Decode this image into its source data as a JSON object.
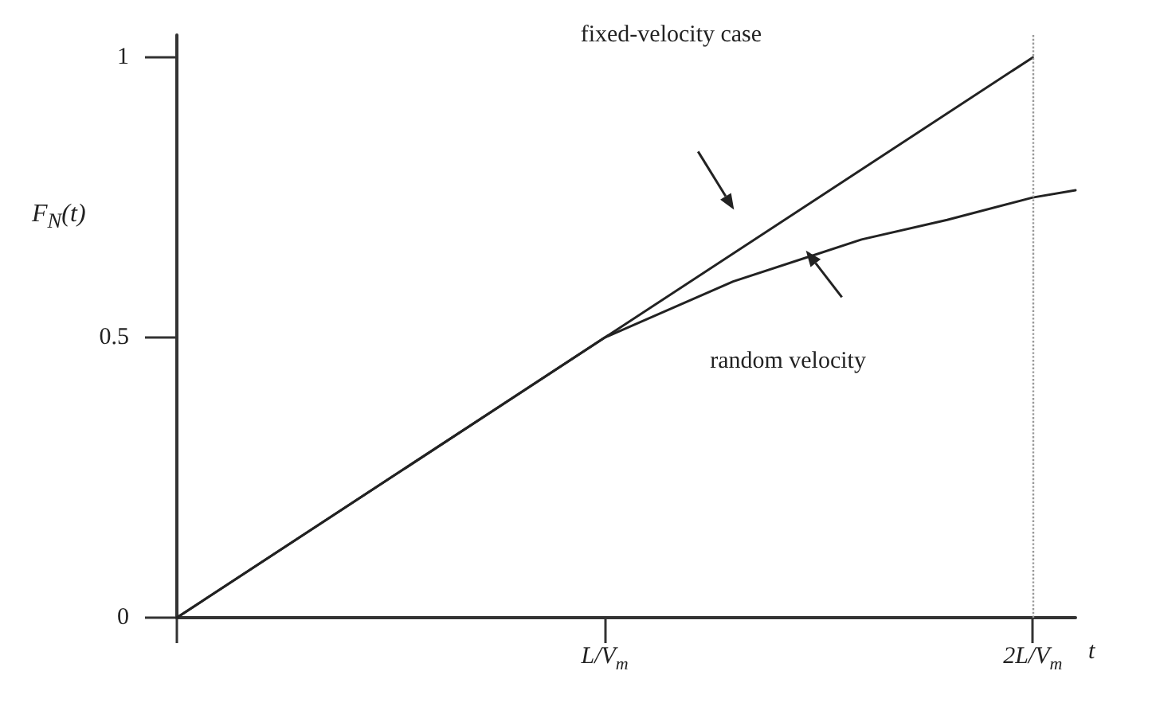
{
  "chart_data": {
    "type": "line",
    "xlabel": "t",
    "ylabel": "F$_{N}$(t)",
    "ylim": [
      0,
      1.04
    ],
    "categories": [
      null,
      null,
      null,
      null,
      null,
      null,
      null,
      null,
      null,
      null,
      "L/V$_{m}$",
      null,
      null,
      null,
      null,
      null,
      null,
      null,
      null,
      null,
      "2L/V$_{m}$",
      null
    ],
    "yticks": [
      0,
      0.5,
      1
    ],
    "series": [
      {
        "color": "#222222",
        "values": [
          0,
          null,
          null,
          null,
          null,
          null,
          null,
          null,
          null,
          null,
          0.5,
          null,
          null,
          null,
          null,
          null,
          null,
          null,
          null,
          null,
          1,
          null
        ]
      },
      {
        "color": "#222222",
        "values": [
          0,
          null,
          null,
          null,
          null,
          null,
          null,
          null,
          null,
          null,
          0.5,
          null,
          null,
          0.6,
          null,
          null,
          0.675,
          null,
          0.71,
          null,
          0.75,
          0.763
        ]
      }
    ],
    "ref_lines": [
      {
        "axis": "x",
        "value": "2L/V$_{m}$",
        "color": "#999999",
        "line_style": "dotted"
      }
    ],
    "annotations": [
      "fixed-velocity case",
      "random velocity"
    ],
    "grid": false,
    "marker": "none",
    "line_style": "solid"
  }
}
